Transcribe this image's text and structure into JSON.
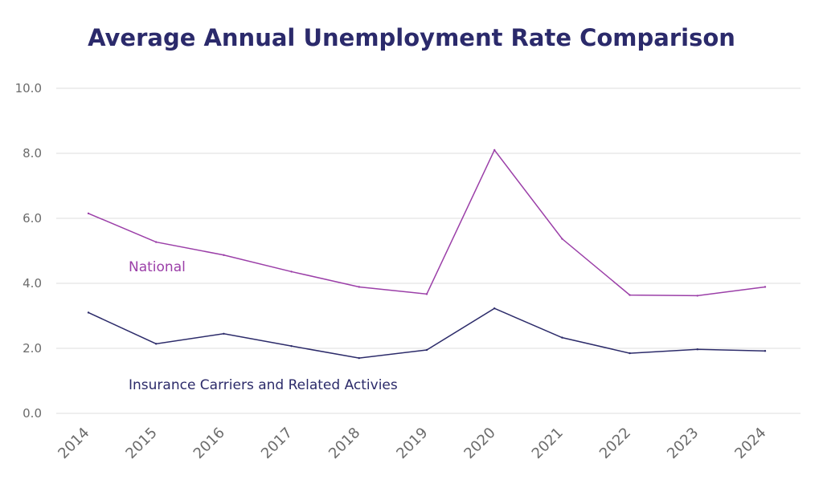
{
  "colors": {
    "title": "#2b2a6b",
    "grid": "#dcdcdc",
    "tick_text": "#6b6b6b"
  },
  "chart_data": {
    "type": "line",
    "title": "Average Annual Unemployment Rate Comparison",
    "xlabel": "",
    "ylabel": "",
    "x": [
      "2014",
      "2015",
      "2016",
      "2017",
      "2018",
      "2019",
      "2020",
      "2021",
      "2022",
      "2023",
      "2024"
    ],
    "ylim": [
      0,
      10
    ],
    "yticks": [
      "0.0",
      "2.0",
      "4.0",
      "6.0",
      "8.0",
      "10.0"
    ],
    "grid": "horizontal",
    "legend": "inline labels",
    "series": [
      {
        "name": "National",
        "color": "#9b3fa8",
        "values": [
          6.15,
          5.27,
          4.87,
          4.36,
          3.89,
          3.67,
          8.1,
          5.37,
          3.64,
          3.62,
          3.89
        ]
      },
      {
        "name": "Insurance Carriers and Related Activies",
        "color": "#2c2b6a",
        "values": [
          3.1,
          2.14,
          2.45,
          2.07,
          1.7,
          1.95,
          3.23,
          2.33,
          1.85,
          1.97,
          1.92
        ]
      }
    ]
  }
}
